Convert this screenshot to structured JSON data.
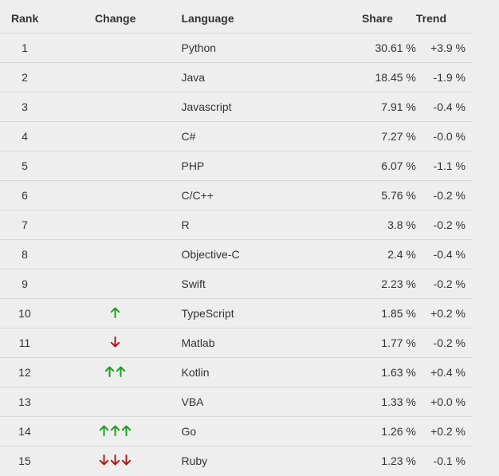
{
  "headers": {
    "rank": "Rank",
    "change": "Change",
    "language": "Language",
    "share": "Share",
    "trend": "Trend"
  },
  "colors": {
    "up": "#1aa01a",
    "down": "#b01818",
    "background": "#eeeeee",
    "row_border": "#d6d6d6"
  },
  "rows": [
    {
      "rank": "1",
      "change": {
        "dir": "none",
        "count": 0
      },
      "language": "Python",
      "share": "30.61 %",
      "trend": "+3.9 %"
    },
    {
      "rank": "2",
      "change": {
        "dir": "none",
        "count": 0
      },
      "language": "Java",
      "share": "18.45 %",
      "trend": "-1.9 %"
    },
    {
      "rank": "3",
      "change": {
        "dir": "none",
        "count": 0
      },
      "language": "Javascript",
      "share": "7.91 %",
      "trend": "-0.4 %"
    },
    {
      "rank": "4",
      "change": {
        "dir": "none",
        "count": 0
      },
      "language": "C#",
      "share": "7.27 %",
      "trend": "-0.0 %"
    },
    {
      "rank": "5",
      "change": {
        "dir": "none",
        "count": 0
      },
      "language": "PHP",
      "share": "6.07 %",
      "trend": "-1.1 %"
    },
    {
      "rank": "6",
      "change": {
        "dir": "none",
        "count": 0
      },
      "language": "C/C++",
      "share": "5.76 %",
      "trend": "-0.2 %"
    },
    {
      "rank": "7",
      "change": {
        "dir": "none",
        "count": 0
      },
      "language": "R",
      "share": "3.8 %",
      "trend": "-0.2 %"
    },
    {
      "rank": "8",
      "change": {
        "dir": "none",
        "count": 0
      },
      "language": "Objective-C",
      "share": "2.4 %",
      "trend": "-0.4 %"
    },
    {
      "rank": "9",
      "change": {
        "dir": "none",
        "count": 0
      },
      "language": "Swift",
      "share": "2.23 %",
      "trend": "-0.2 %"
    },
    {
      "rank": "10",
      "change": {
        "dir": "up",
        "count": 1
      },
      "language": "TypeScript",
      "share": "1.85 %",
      "trend": "+0.2 %"
    },
    {
      "rank": "11",
      "change": {
        "dir": "down",
        "count": 1
      },
      "language": "Matlab",
      "share": "1.77 %",
      "trend": "-0.2 %"
    },
    {
      "rank": "12",
      "change": {
        "dir": "up",
        "count": 2
      },
      "language": "Kotlin",
      "share": "1.63 %",
      "trend": "+0.4 %"
    },
    {
      "rank": "13",
      "change": {
        "dir": "none",
        "count": 0
      },
      "language": "VBA",
      "share": "1.33 %",
      "trend": "+0.0 %"
    },
    {
      "rank": "14",
      "change": {
        "dir": "up",
        "count": 3
      },
      "language": "Go",
      "share": "1.26 %",
      "trend": "+0.2 %"
    },
    {
      "rank": "15",
      "change": {
        "dir": "down",
        "count": 3
      },
      "language": "Ruby",
      "share": "1.23 %",
      "trend": "-0.1 %"
    }
  ]
}
